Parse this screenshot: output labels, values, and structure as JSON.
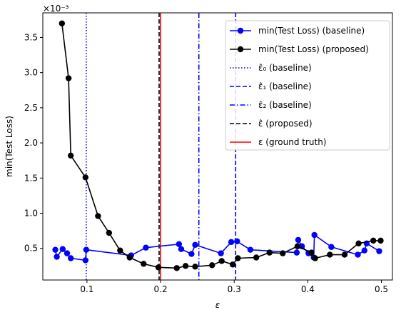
{
  "chart_data": {
    "type": "line",
    "xlabel": "ε",
    "ylabel": "min(Test Loss)",
    "y_scale_label": "×10⁻³",
    "xlim": [
      0.04,
      0.515
    ],
    "ylim": [
      0.05,
      3.85
    ],
    "xticks": [
      0.1,
      0.2,
      0.3,
      0.4,
      0.5
    ],
    "xtick_labels": [
      "0.1",
      "0.2",
      "0.3",
      "0.4",
      "0.5"
    ],
    "yticks": [
      0.5,
      1.0,
      1.5,
      2.0,
      2.5,
      3.0,
      3.5
    ],
    "ytick_labels": [
      "0.5",
      "1.0",
      "1.5",
      "2.0",
      "2.5",
      "3.0",
      "3.5"
    ],
    "grid": false,
    "legend_position": "top-right",
    "series": [
      {
        "name": "min(Test Loss) (baseline)",
        "color": "#0000ff",
        "marker": "circle",
        "x": [
          0.057,
          0.059,
          0.067,
          0.073,
          0.078,
          0.098,
          0.099,
          0.16,
          0.18,
          0.225,
          0.228,
          0.242,
          0.247,
          0.282,
          0.296,
          0.304,
          0.322,
          0.385,
          0.387,
          0.392,
          0.401,
          0.408,
          0.409,
          0.432,
          0.468,
          0.477,
          0.48,
          0.497
        ],
        "values": [
          0.48,
          0.38,
          0.49,
          0.43,
          0.36,
          0.33,
          0.48,
          0.4,
          0.51,
          0.56,
          0.49,
          0.42,
          0.55,
          0.43,
          0.59,
          0.6,
          0.48,
          0.44,
          0.62,
          0.53,
          0.43,
          0.37,
          0.69,
          0.52,
          0.41,
          0.47,
          0.57,
          0.46
        ]
      },
      {
        "name": "min(Test Loss) (proposed)",
        "color": "#000000",
        "marker": "circle",
        "x": [
          0.066,
          0.075,
          0.078,
          0.098,
          0.115,
          0.13,
          0.145,
          0.158,
          0.177,
          0.197,
          0.222,
          0.234,
          0.247,
          0.27,
          0.283,
          0.298,
          0.305,
          0.33,
          0.348,
          0.366,
          0.386,
          0.405,
          0.41,
          0.43,
          0.45,
          0.469,
          0.489,
          0.499
        ],
        "values": [
          3.7,
          2.92,
          1.82,
          1.51,
          0.96,
          0.72,
          0.47,
          0.37,
          0.28,
          0.23,
          0.22,
          0.25,
          0.24,
          0.26,
          0.32,
          0.27,
          0.36,
          0.37,
          0.44,
          0.43,
          0.53,
          0.44,
          0.36,
          0.41,
          0.41,
          0.57,
          0.61,
          0.61
        ]
      }
    ],
    "vlines": [
      {
        "name": "ε̂₀ (baseline)",
        "x": 0.099,
        "color": "#0000ff",
        "style": "dotted"
      },
      {
        "name": "ε̂₁ (baseline)",
        "x": 0.302,
        "color": "#0000ff",
        "style": "dashed"
      },
      {
        "name": "ε̂₂ (baseline)",
        "x": 0.252,
        "color": "#0000ff",
        "style": "dashdot"
      },
      {
        "name": "ε̂ (proposed)",
        "x": 0.198,
        "color": "#000000",
        "style": "dashed"
      },
      {
        "name": "ε (ground truth)",
        "x": 0.2,
        "color": "#ff0000",
        "style": "solid"
      }
    ]
  }
}
